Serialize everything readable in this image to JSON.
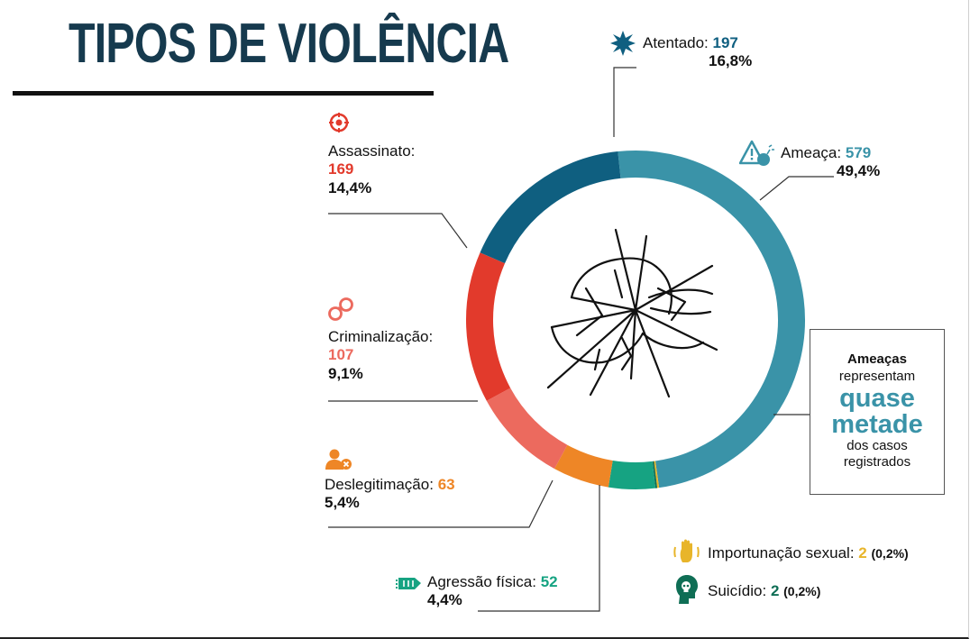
{
  "header": {
    "title": "TIPOS DE VIOLÊNCIA"
  },
  "chart_data": {
    "type": "pie",
    "title": "TIPOS DE VIOLÊNCIA",
    "categories": [
      "Ameaça",
      "Importunação sexual",
      "Suicídio",
      "Agressão física",
      "Deslegitimação",
      "Criminalização",
      "Assassinato",
      "Atentado"
    ],
    "values": [
      579,
      2,
      2,
      52,
      63,
      107,
      169,
      197
    ],
    "labels": [
      {
        "name": "Ameaça:",
        "value": "579",
        "pct": "49,4%"
      },
      {
        "name": "Importunação sexual:",
        "value": "2",
        "pct": "(0,2%)"
      },
      {
        "name": "Suicídio:",
        "value": "2",
        "pct": "(0,2%)"
      },
      {
        "name": "Agressão física:",
        "value": "52",
        "pct": "4,4%"
      },
      {
        "name": "Deslegitimação:",
        "value": "63",
        "pct": "5,4%"
      },
      {
        "name": "Criminalização:",
        "value": "107",
        "pct": "9,1%"
      },
      {
        "name": "Assassinato:",
        "value": "169",
        "pct": "14,4%"
      },
      {
        "name": "Atentado:",
        "value": "197",
        "pct": "16,8%"
      }
    ],
    "colors": [
      "#3a93a8",
      "#e8b52a",
      "#0f6e55",
      "#16a382",
      "#ee8626",
      "#ec6a5e",
      "#e23a2c",
      "#0f5f80"
    ],
    "hole": "donut"
  },
  "callout": {
    "line1": "Ameaças",
    "line2": "representam",
    "line3": "quase",
    "line4": "metade",
    "line5": "dos casos",
    "line6": "registrados"
  }
}
